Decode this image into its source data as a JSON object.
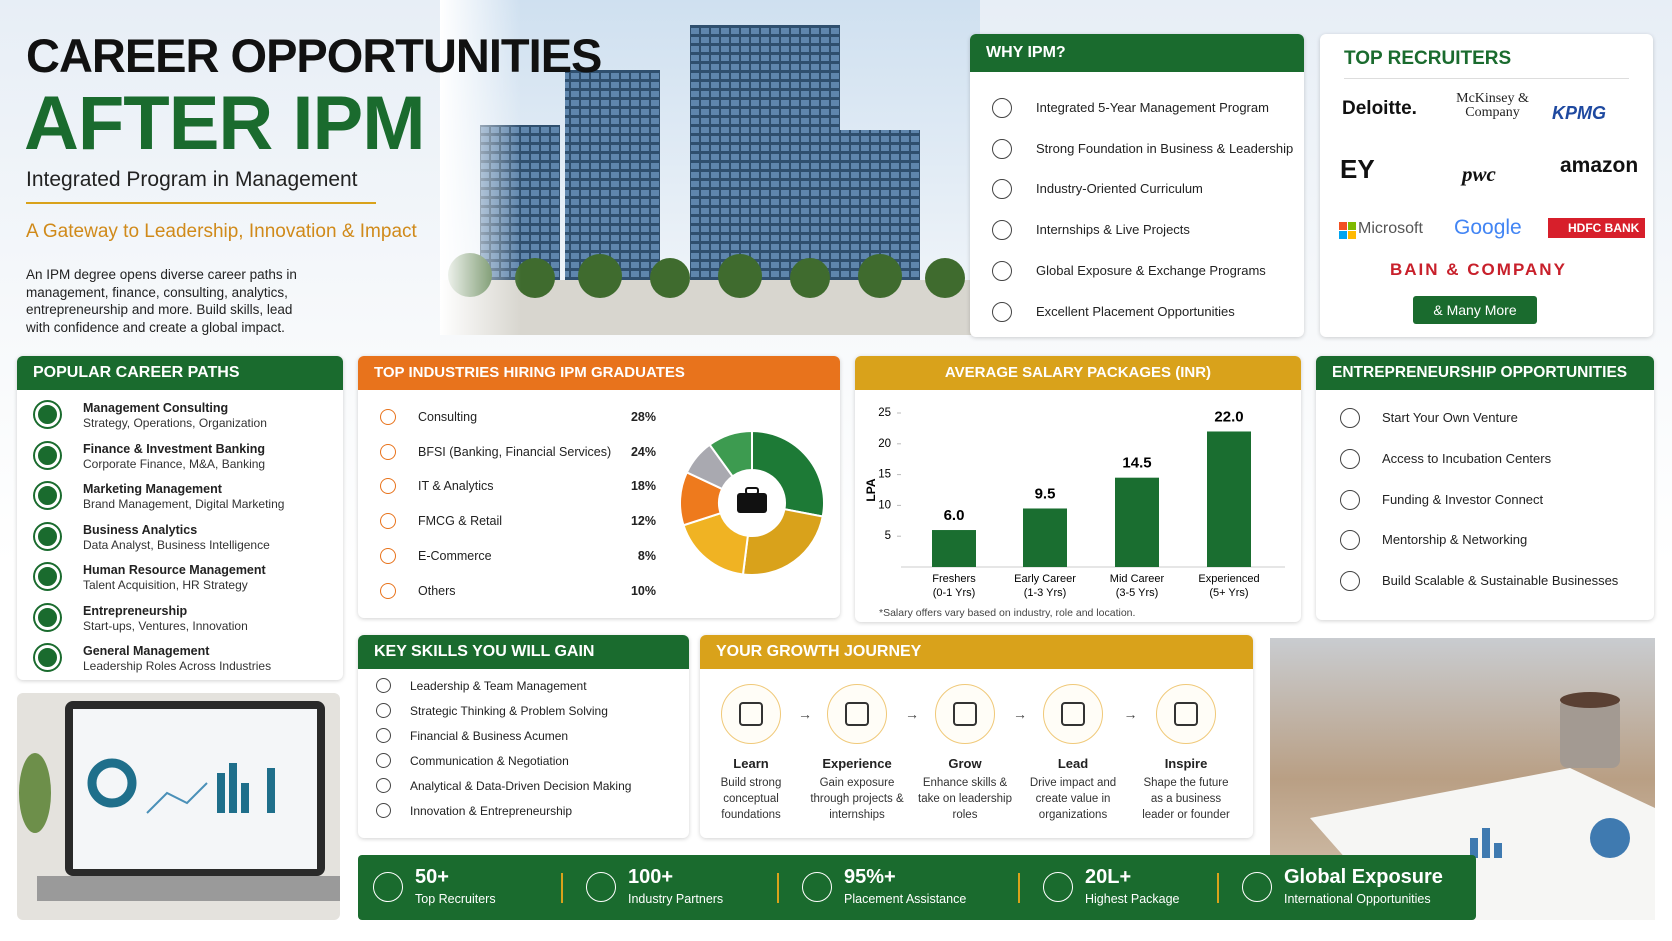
{
  "header": {
    "title_line1": "CAREER OPPORTUNITIES",
    "title_line2": "AFTER IPM",
    "subtitle": "Integrated Program in Management",
    "tagline": "A Gateway to Leadership, Innovation & Impact",
    "description": "An IPM degree opens diverse career paths in management, finance, consulting, analytics, entrepreneurship and more. Build skills, lead with confidence and create a global impact."
  },
  "why_ipm": {
    "title": "WHY IPM?",
    "items": [
      "Integrated 5-Year Management Program",
      "Strong Foundation in Business & Leadership",
      "Industry-Oriented Curriculum",
      "Internships & Live Projects",
      "Global Exposure & Exchange Programs",
      "Excellent Placement Opportunities"
    ]
  },
  "top_recruiters": {
    "title": "TOP RECRUITERS",
    "logos": [
      "Deloitte.",
      "McKinsey & Company",
      "KPMG",
      "EY",
      "pwc",
      "amazon",
      "Microsoft",
      "Google",
      "HDFC BANK",
      "BAIN & COMPANY"
    ],
    "button": "& Many More"
  },
  "career_paths": {
    "title": "POPULAR CAREER PATHS",
    "items": [
      {
        "name": "Management Consulting",
        "detail": "Strategy, Operations, Organization"
      },
      {
        "name": "Finance & Investment Banking",
        "detail": "Corporate Finance, M&A, Banking"
      },
      {
        "name": "Marketing Management",
        "detail": "Brand Management, Digital Marketing"
      },
      {
        "name": "Business Analytics",
        "detail": "Data Analyst, Business Intelligence"
      },
      {
        "name": "Human Resource Management",
        "detail": "Talent Acquisition, HR Strategy"
      },
      {
        "name": "Entrepreneurship",
        "detail": "Start-ups, Ventures, Innovation"
      },
      {
        "name": "General Management",
        "detail": "Leadership Roles Across Industries"
      }
    ]
  },
  "chart_data": [
    {
      "type": "donut",
      "title": "TOP INDUSTRIES HIRING IPM GRADUATES",
      "categories": [
        "Consulting",
        "BFSI (Banking, Financial Services)",
        "IT & Analytics",
        "FMCG & Retail",
        "E-Commerce",
        "Others"
      ],
      "values": [
        28,
        24,
        18,
        12,
        8,
        10
      ],
      "value_labels": [
        "28%",
        "24%",
        "18%",
        "12%",
        "8%",
        "10%"
      ],
      "colors": [
        "#1d7a36",
        "#d9a21b",
        "#f0b323",
        "#ee7a1d",
        "#a9a9b0",
        "#3d9b50"
      ]
    },
    {
      "type": "bar",
      "title": "AVERAGE SALARY PACKAGES (INR)",
      "ylabel": "LPA",
      "categories": [
        "Freshers",
        "Early Career",
        "Mid Career",
        "Experienced"
      ],
      "category_details": [
        "(0-1 Yrs)",
        "(1-3 Yrs)",
        "(3-5 Yrs)",
        "(5+ Yrs)"
      ],
      "values": [
        6.0,
        9.5,
        14.5,
        22.0
      ],
      "value_labels": [
        "6.0",
        "9.5",
        "14.5",
        "22.0"
      ],
      "color": "#1a6e30",
      "ylim": [
        0,
        25
      ],
      "yticks": [
        5,
        10,
        15,
        20,
        25
      ],
      "grid": false,
      "note": "*Salary offers vary based on industry, role and location."
    }
  ],
  "entrepreneurship": {
    "title": "ENTREPRENEURSHIP OPPORTUNITIES",
    "items": [
      "Start Your Own Venture",
      "Access to Incubation Centers",
      "Funding & Investor Connect",
      "Mentorship & Networking",
      "Build Scalable & Sustainable Businesses"
    ]
  },
  "skills": {
    "title": "KEY SKILLS YOU WILL GAIN",
    "items": [
      "Leadership & Team Management",
      "Strategic Thinking & Problem Solving",
      "Financial & Business Acumen",
      "Communication & Negotiation",
      "Analytical & Data-Driven Decision Making",
      "Innovation & Entrepreneurship"
    ]
  },
  "growth": {
    "title": "YOUR GROWTH JOURNEY",
    "steps": [
      {
        "title": "Learn",
        "desc": "Build strong conceptual foundations"
      },
      {
        "title": "Experience",
        "desc": "Gain exposure through projects & internships"
      },
      {
        "title": "Grow",
        "desc": "Enhance skills & take on leadership roles"
      },
      {
        "title": "Lead",
        "desc": "Drive impact and create value in organizations"
      },
      {
        "title": "Inspire",
        "desc": "Shape the future as a business leader or founder"
      }
    ]
  },
  "stats": [
    {
      "value": "50+",
      "label": "Top Recruiters"
    },
    {
      "value": "100+",
      "label": "Industry Partners"
    },
    {
      "value": "95%+",
      "label": "Placement Assistance"
    },
    {
      "value": "20L+",
      "label": "Highest Package"
    },
    {
      "value": "Global Exposure",
      "label": "International Opportunities"
    }
  ]
}
